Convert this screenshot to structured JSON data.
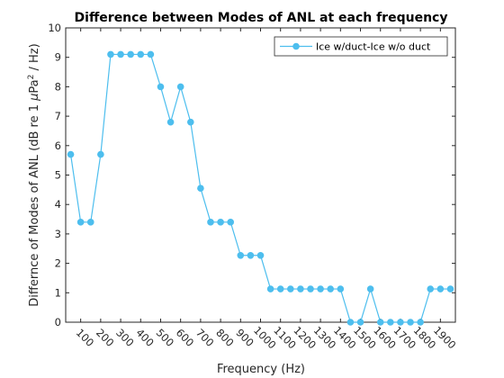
{
  "chart_data": {
    "type": "line",
    "title": "Difference between Modes of ANL at each frequency",
    "xlabel": "Frequency (Hz)",
    "ylabel_main": "Differnce of Modes of ANL (dB re 1 ",
    "ylabel_mu": "μ",
    "ylabel_pa": "Pa",
    "ylabel_sup": "2",
    "ylabel_tail": " / Hz)",
    "xlim": [
      25,
      1975
    ],
    "ylim": [
      0,
      10
    ],
    "xticks": [
      100,
      200,
      300,
      400,
      500,
      600,
      700,
      800,
      900,
      1000,
      1100,
      1200,
      1300,
      1400,
      1500,
      1600,
      1700,
      1800,
      1900
    ],
    "xtick_labels": [
      "100",
      "200",
      "300",
      "400",
      "500",
      "600",
      "700",
      "800",
      "900",
      "1000",
      "1100",
      "1200",
      "1300",
      "1400",
      "1500",
      "1600",
      "1700",
      "1800",
      "1900"
    ],
    "yticks": [
      0,
      1,
      2,
      3,
      4,
      5,
      6,
      7,
      8,
      9,
      10
    ],
    "ytick_labels": [
      "0",
      "1",
      "2",
      "3",
      "4",
      "5",
      "6",
      "7",
      "8",
      "9",
      "10"
    ],
    "grid": false,
    "legend_position": "top-right",
    "colors": {
      "series": "#4DBEEE",
      "axis": "#262626"
    },
    "series": [
      {
        "name": "Ice w/duct-Ice w/o duct",
        "x": [
          50,
          100,
          150,
          200,
          250,
          300,
          350,
          400,
          450,
          500,
          550,
          600,
          650,
          700,
          750,
          800,
          850,
          900,
          950,
          1000,
          1050,
          1100,
          1150,
          1200,
          1250,
          1300,
          1350,
          1400,
          1450,
          1500,
          1550,
          1600,
          1650,
          1700,
          1750,
          1800,
          1850,
          1900,
          1950
        ],
        "values": [
          5.7,
          3.4,
          3.4,
          5.7,
          9.1,
          9.1,
          9.1,
          9.1,
          9.1,
          8.0,
          6.8,
          8.0,
          6.8,
          4.55,
          3.4,
          3.4,
          3.4,
          2.27,
          2.27,
          2.27,
          1.13,
          1.13,
          1.13,
          1.13,
          1.13,
          1.13,
          1.13,
          1.13,
          0,
          0,
          1.13,
          0,
          0,
          0,
          0,
          0,
          1.13,
          1.13,
          1.13
        ]
      }
    ]
  }
}
